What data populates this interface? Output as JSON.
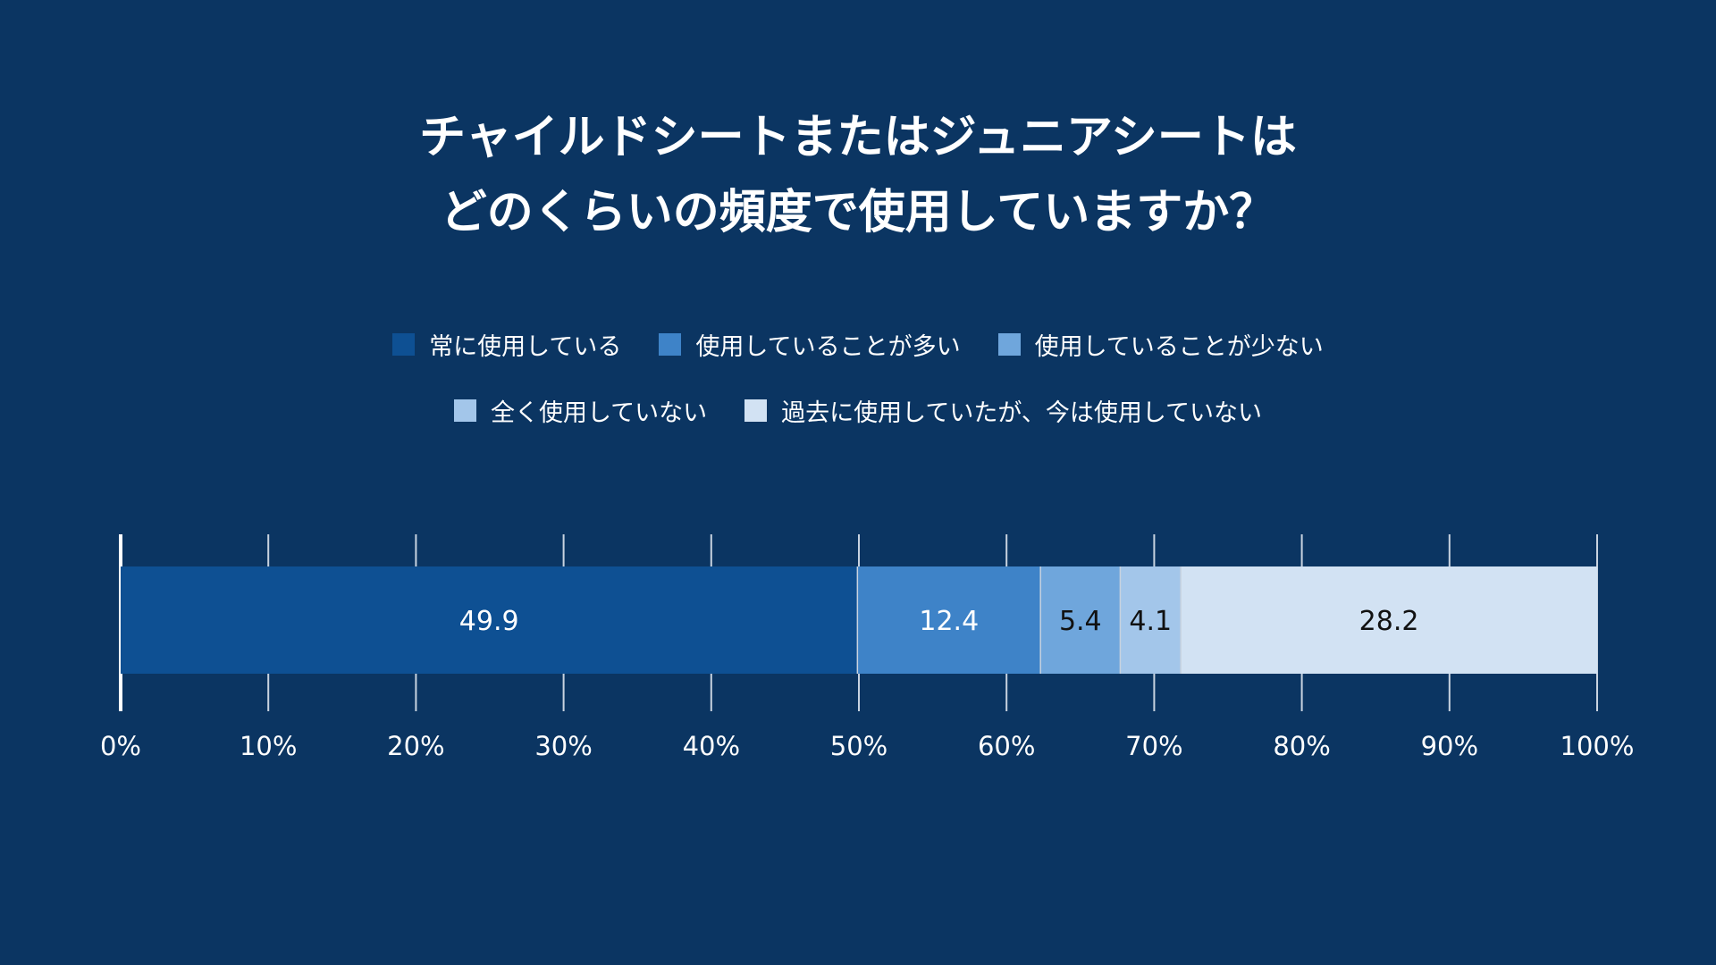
{
  "title": {
    "line1": "チャイルドシートまたはジュニアシートは",
    "line2": "どのくらいの頻度で使用していますか？"
  },
  "colors": {
    "background": "#0b3562",
    "series": [
      "#0e5093",
      "#3e83c8",
      "#6fa6dc",
      "#a3c6ea",
      "#d2e2f3"
    ],
    "label_light": "#ffffff",
    "label_dark": "#111111",
    "axis": "#ffffff",
    "grid": "#c8d3e0"
  },
  "chart_data": {
    "type": "bar",
    "orientation": "horizontal",
    "stacked": true,
    "categories": [
      ""
    ],
    "series": [
      {
        "name": "常に使用している",
        "values": [
          49.9
        ]
      },
      {
        "name": "使用していることが多い",
        "values": [
          12.4
        ]
      },
      {
        "name": "使用していることが少ない",
        "values": [
          5.4
        ]
      },
      {
        "name": "全く使用していない",
        "values": [
          4.1
        ]
      },
      {
        "name": "過去に使用していたが、今は使用していない",
        "values": [
          28.2
        ]
      }
    ],
    "data_labels": [
      "49.9",
      "12.4",
      "5.4",
      "4.1",
      "28.2"
    ],
    "xlim": [
      0,
      100
    ],
    "x_ticks": [
      0,
      10,
      20,
      30,
      40,
      50,
      60,
      70,
      80,
      90,
      100
    ],
    "x_tick_labels": [
      "0%",
      "10%",
      "20%",
      "30%",
      "40%",
      "50%",
      "60%",
      "70%",
      "80%",
      "90%",
      "100%"
    ],
    "grid": true,
    "legend_position": "top-center"
  }
}
